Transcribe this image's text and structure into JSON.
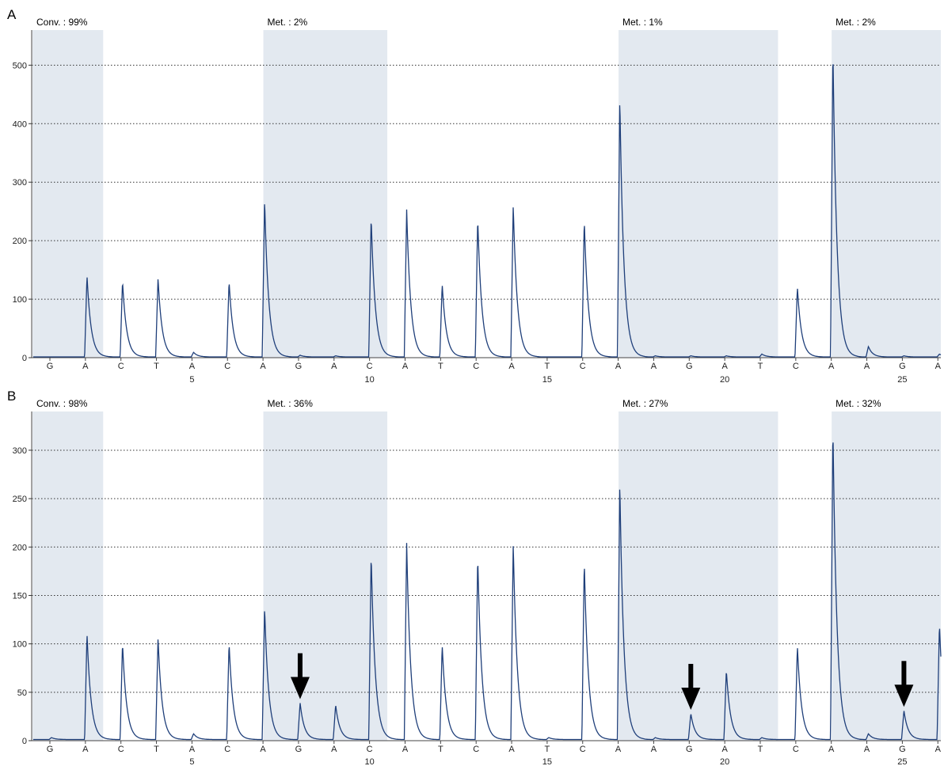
{
  "chart_data": [
    {
      "type": "line",
      "panel_label": "A",
      "ylim": [
        0,
        560
      ],
      "y_ticks": [
        0,
        100,
        200,
        300,
        400,
        500
      ],
      "grid": "horizontal-dotted",
      "dispensation_order": [
        "G",
        "A",
        "C",
        "T",
        "A",
        "C",
        "A",
        "G",
        "A",
        "C",
        "A",
        "T",
        "C",
        "A",
        "T",
        "C",
        "A",
        "A",
        "G",
        "A",
        "T",
        "C",
        "A",
        "A",
        "G",
        "A"
      ],
      "x_ticks": [
        5,
        10,
        15,
        20,
        25
      ],
      "regions": [
        {
          "label": "Conv. : 99%",
          "start": 1,
          "end": 2.5
        },
        {
          "label": "Met. : 2%",
          "start": 7.5,
          "end": 10.5
        },
        {
          "label": "Met. : 1%",
          "start": 17.5,
          "end": 21.5
        },
        {
          "label": "Met. : 2%",
          "start": 23.5,
          "end": 26.5
        }
      ],
      "peaks": [
        0,
        140,
        130,
        135,
        8,
        130,
        270,
        3,
        2,
        240,
        252,
        125,
        238,
        260,
        0,
        235,
        445,
        2,
        2,
        2,
        5,
        120,
        530,
        18,
        2,
        5
      ],
      "arrows": []
    },
    {
      "type": "line",
      "panel_label": "B",
      "ylim": [
        0,
        340
      ],
      "y_ticks": [
        0,
        50,
        100,
        150,
        200,
        250,
        300
      ],
      "grid": "horizontal-dotted",
      "dispensation_order": [
        "G",
        "A",
        "C",
        "T",
        "A",
        "C",
        "A",
        "G",
        "A",
        "C",
        "A",
        "T",
        "C",
        "A",
        "T",
        "C",
        "A",
        "A",
        "G",
        "A",
        "T",
        "C",
        "A",
        "A",
        "G",
        "A"
      ],
      "x_ticks": [
        5,
        10,
        15,
        20,
        25
      ],
      "regions": [
        {
          "label": "Conv. : 98%",
          "start": 1,
          "end": 2.5
        },
        {
          "label": "Met. : 36%",
          "start": 7.5,
          "end": 10.5
        },
        {
          "label": "Met. : 27%",
          "start": 17.5,
          "end": 21.5
        },
        {
          "label": "Met. : 32%",
          "start": 23.5,
          "end": 26.5
        }
      ],
      "peaks": [
        2,
        110,
        100,
        105,
        6,
        100,
        137,
        38,
        36,
        192,
        203,
        98,
        190,
        203,
        2,
        185,
        267,
        2,
        27,
        72,
        2,
        97,
        325,
        6,
        30,
        120
      ],
      "arrows": [
        8,
        19,
        25
      ]
    }
  ]
}
